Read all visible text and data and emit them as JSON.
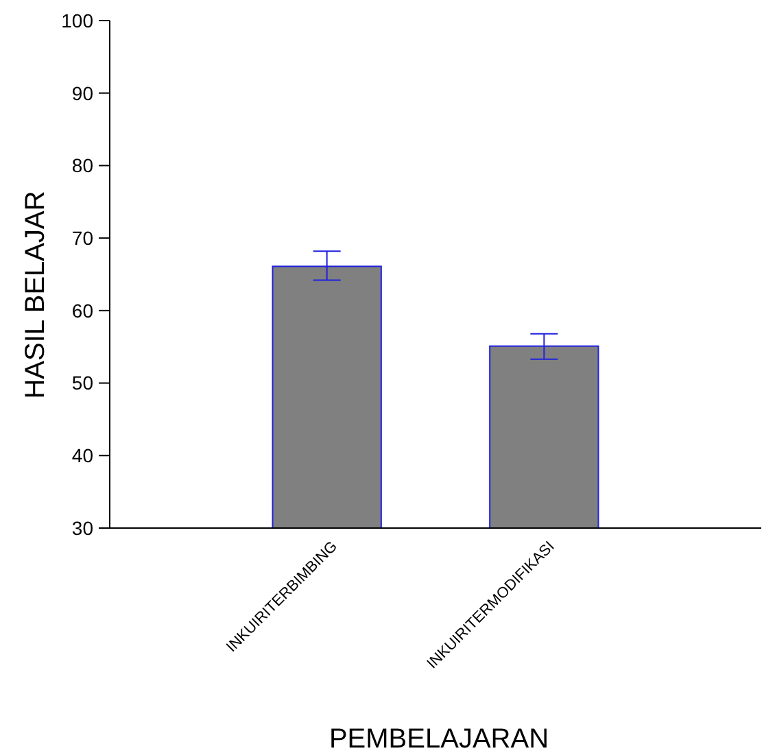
{
  "chart_data": {
    "type": "bar",
    "xlabel": "PEMBELAJARAN",
    "ylabel": "HASIL BELAJAR",
    "categories": [
      "INKUIRITERBIMBING",
      "INKUIRITERMODIFIKASI"
    ],
    "values": [
      66.1,
      55.1
    ],
    "errors": [
      [
        64.2,
        68.2
      ],
      [
        53.3,
        56.8
      ]
    ],
    "color": "#808080",
    "ylim": [
      30,
      100
    ],
    "yticks": [
      30,
      40,
      50,
      60,
      70,
      80,
      90,
      100
    ],
    "grid": false
  }
}
